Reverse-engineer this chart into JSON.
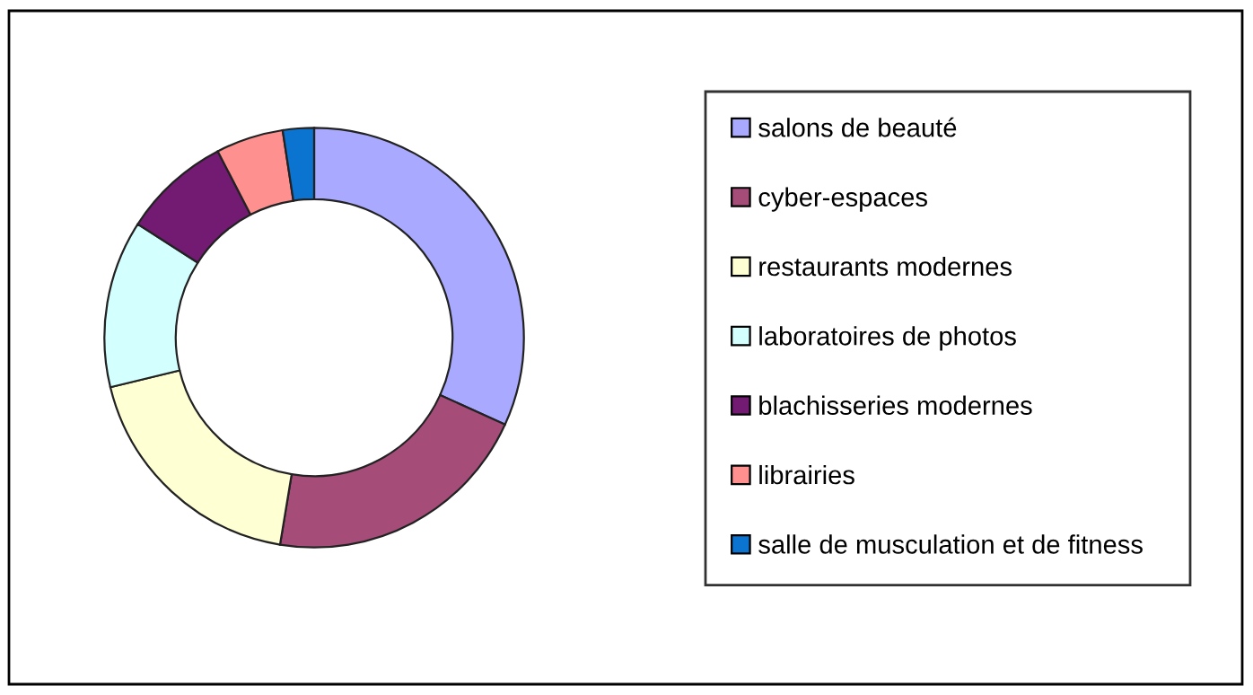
{
  "chart_data": {
    "type": "donut",
    "categories": [
      "salons de beauté",
      "cyber-espaces",
      "restaurants modernes",
      "laboratoires de photos",
      "blachisseries modernes",
      "librairies",
      "salle de musculation et de fitness"
    ],
    "values": [
      31.8,
      20.8,
      18.6,
      12.9,
      8.3,
      5.2,
      2.4
    ],
    "colors": [
      "#a9a9ff",
      "#a64c79",
      "#ffffd4",
      "#d4ffff",
      "#731a73",
      "#ff9090",
      "#0a74d0"
    ],
    "legend": "right"
  }
}
